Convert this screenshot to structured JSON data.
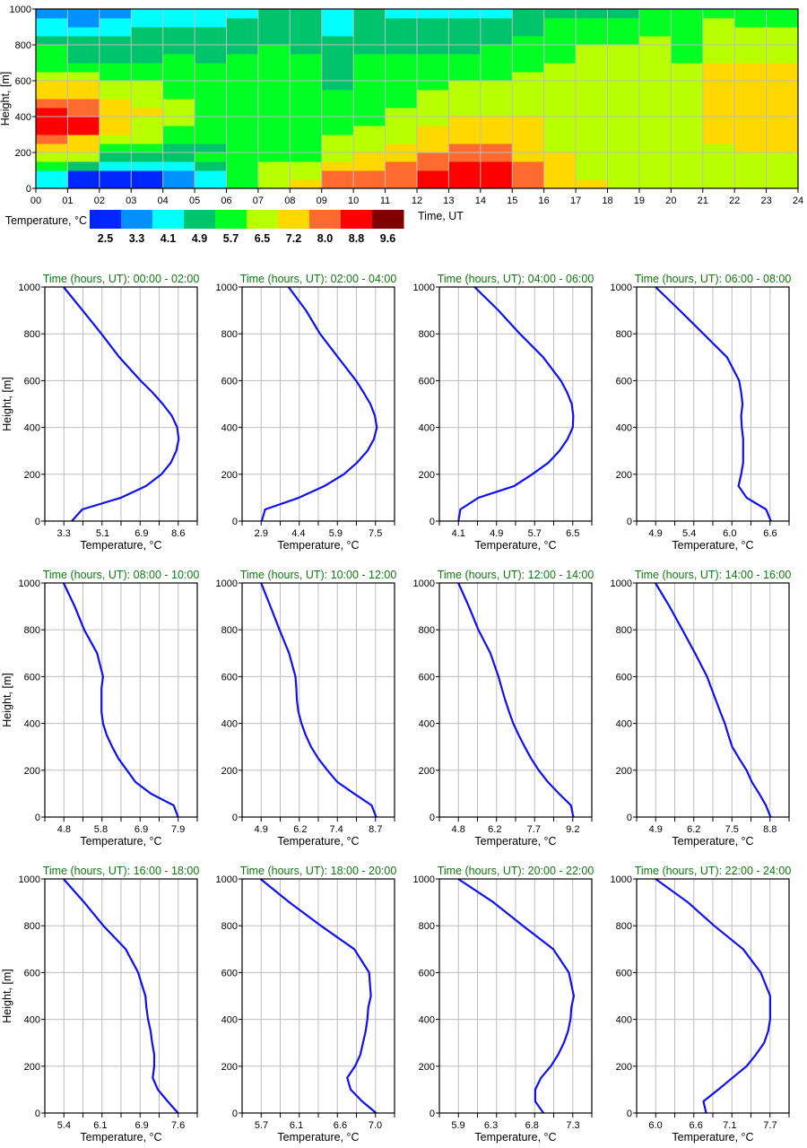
{
  "chart_data": [
    {
      "type": "heatmap",
      "xlabel": "Time, UT",
      "ylabel": "Height, [m]",
      "xlim": [
        0,
        24
      ],
      "ylim": [
        0,
        1000
      ],
      "x_tick_labels": [
        "00",
        "01",
        "02",
        "03",
        "04",
        "05",
        "06",
        "07",
        "08",
        "09",
        "10",
        "11",
        "12",
        "13",
        "14",
        "15",
        "16",
        "17",
        "18",
        "19",
        "20",
        "21",
        "22",
        "23",
        "24"
      ],
      "y_ticks": [
        0,
        200,
        400,
        600,
        800,
        1000
      ],
      "grid": true,
      "colorbar": {
        "label": "Temperature, °C",
        "values": [
          "2.5",
          "3.3",
          "4.1",
          "4.9",
          "5.7",
          "6.5",
          "7.2",
          "8.0",
          "8.8",
          "9.6"
        ],
        "colors": [
          "#0026ff",
          "#0090ff",
          "#00ffff",
          "#00c46c",
          "#00ff22",
          "#b8ff00",
          "#ffd800",
          "#ff6a2e",
          "#ff0000",
          "#800000"
        ]
      },
      "cell_height_m": 50,
      "cell_time_h": 1,
      "columns_color_index_bottom_to_top": [
        "22456788876654443221",
        "00356688776654333211",
        "00234566665544333221",
        "00234555655544333322",
        "11233445554444433322",
        "22343444444444333322",
        "44444444444444433332",
        "55544444444444443333",
        "65544444444444433333",
        "77655544444333333222",
        "77665554444444433333",
        "77766555544444433332",
        "88776665555444433332",
        "88877666555544433332",
        "88877666555544443332",
        "77766666555554444333",
        "66665555555555444443",
        "65555555555555554443",
        "55555555555555554443",
        "55555555555555555444",
        "55555555555555444444",
        "55555666666666555554",
        "55556666666666555544",
        "55556666666666555544"
      ]
    },
    {
      "type": "line",
      "title_prefix": "Time (hours, UT): ",
      "xlabel": "Temperature, °C",
      "ylabel": "Height, [m]",
      "ylim": [
        0,
        1000
      ],
      "y_ticks": [
        0,
        200,
        400,
        600,
        800,
        1000
      ],
      "heights": [
        0,
        50,
        100,
        150,
        200,
        250,
        300,
        350,
        400,
        450,
        500,
        550,
        600,
        700,
        800,
        900,
        1000
      ],
      "panels": [
        {
          "range": "00:00 - 02:00",
          "xlim": [
            2.42,
            9.48
          ],
          "ticks": [
            "3.3",
            "5.1",
            "6.9",
            "8.6"
          ],
          "temps": [
            3.67,
            4.15,
            5.95,
            7.11,
            7.82,
            8.26,
            8.51,
            8.62,
            8.55,
            8.3,
            7.88,
            7.4,
            6.85,
            5.87,
            5.04,
            4.17,
            3.29
          ]
        },
        {
          "range": "02:00 - 04:00",
          "xlim": [
            2.13,
            8.27
          ],
          "ticks": [
            "2.9",
            "4.4",
            "5.9",
            "7.5"
          ],
          "temps": [
            2.92,
            3.06,
            4.42,
            5.45,
            6.23,
            6.76,
            7.18,
            7.44,
            7.56,
            7.48,
            7.3,
            7.02,
            6.72,
            5.99,
            5.27,
            4.7,
            4.0
          ]
        },
        {
          "range": "04:00 - 06:00",
          "xlim": [
            3.7,
            6.9
          ],
          "ticks": [
            "4.1",
            "4.9",
            "5.7",
            "6.5"
          ],
          "temps": [
            4.1,
            4.14,
            4.52,
            5.27,
            5.65,
            5.99,
            6.22,
            6.39,
            6.5,
            6.51,
            6.48,
            6.38,
            6.25,
            5.88,
            5.39,
            4.94,
            4.44
          ]
        },
        {
          "range": "06:00 - 08:00",
          "xlim": [
            4.62,
            6.88
          ],
          "ticks": [
            "4.9",
            "5.4",
            "6.0",
            "6.6"
          ],
          "temps": [
            6.61,
            6.54,
            6.25,
            6.13,
            6.17,
            6.2,
            6.2,
            6.2,
            6.18,
            6.17,
            6.19,
            6.17,
            6.14,
            5.96,
            5.61,
            5.26,
            4.9
          ]
        },
        {
          "range": "08:00 - 10:00",
          "xlim": [
            4.28,
            8.42
          ],
          "ticks": [
            "4.8",
            "5.8",
            "6.9",
            "7.9"
          ],
          "temps": [
            7.9,
            7.78,
            7.16,
            6.74,
            6.51,
            6.28,
            6.11,
            5.96,
            5.86,
            5.82,
            5.82,
            5.82,
            5.86,
            5.7,
            5.35,
            5.09,
            4.79
          ]
        },
        {
          "range": "10:00 - 12:00",
          "xlim": [
            4.27,
            9.33
          ],
          "ticks": [
            "4.9",
            "6.2",
            "7.4",
            "8.7"
          ],
          "temps": [
            8.72,
            8.57,
            7.99,
            7.43,
            7.1,
            6.8,
            6.56,
            6.38,
            6.24,
            6.14,
            6.09,
            6.07,
            6.04,
            5.83,
            5.51,
            5.21,
            4.9
          ]
        },
        {
          "range": "12:00 - 14:00",
          "xlim": [
            4.07,
            9.93
          ],
          "ticks": [
            "4.8",
            "6.2",
            "7.7",
            "9.2"
          ],
          "temps": [
            9.22,
            9.13,
            8.67,
            8.24,
            7.89,
            7.6,
            7.35,
            7.12,
            6.91,
            6.75,
            6.6,
            6.47,
            6.34,
            6.03,
            5.57,
            5.2,
            4.8
          ]
        },
        {
          "range": "14:00 - 16:00",
          "xlim": [
            4.25,
            9.45
          ],
          "ticks": [
            "4.9",
            "6.2",
            "7.5",
            "8.8"
          ],
          "temps": [
            8.82,
            8.66,
            8.43,
            8.18,
            8.0,
            7.75,
            7.51,
            7.38,
            7.26,
            7.1,
            6.95,
            6.8,
            6.65,
            6.24,
            5.81,
            5.37,
            4.89
          ]
        },
        {
          "range": "16:00 - 18:00",
          "xlim": [
            5.03,
            7.97
          ],
          "ticks": [
            "5.4",
            "6.1",
            "6.9",
            "7.6"
          ],
          "temps": [
            7.6,
            7.4,
            7.21,
            7.11,
            7.14,
            7.14,
            7.1,
            7.07,
            7.02,
            6.99,
            6.97,
            6.9,
            6.83,
            6.59,
            6.16,
            5.79,
            5.39
          ]
        },
        {
          "range": "18:00 - 20:00",
          "xlim": [
            5.48,
            7.22
          ],
          "ticks": [
            "5.7",
            "6.1",
            "6.6",
            "7.0"
          ],
          "temps": [
            7.01,
            6.85,
            6.72,
            6.68,
            6.77,
            6.83,
            6.86,
            6.89,
            6.91,
            6.92,
            6.95,
            6.94,
            6.93,
            6.76,
            6.38,
            6.02,
            5.69
          ]
        },
        {
          "range": "20:00 - 22:00",
          "xlim": [
            5.67,
            7.53
          ],
          "ticks": [
            "5.9",
            "6.3",
            "6.8",
            "7.3"
          ],
          "temps": [
            6.94,
            6.84,
            6.84,
            6.91,
            7.03,
            7.12,
            7.19,
            7.24,
            7.27,
            7.28,
            7.31,
            7.28,
            7.25,
            7.06,
            6.69,
            6.33,
            5.9
          ]
        },
        {
          "range": "22:00 - 24:00",
          "xlim": [
            5.72,
            7.98
          ],
          "ticks": [
            "6.0",
            "6.6",
            "7.1",
            "7.7"
          ],
          "temps": [
            6.75,
            6.71,
            6.93,
            7.14,
            7.35,
            7.49,
            7.61,
            7.67,
            7.7,
            7.7,
            7.7,
            7.63,
            7.56,
            7.3,
            6.87,
            6.48,
            6.0
          ]
        }
      ]
    }
  ]
}
